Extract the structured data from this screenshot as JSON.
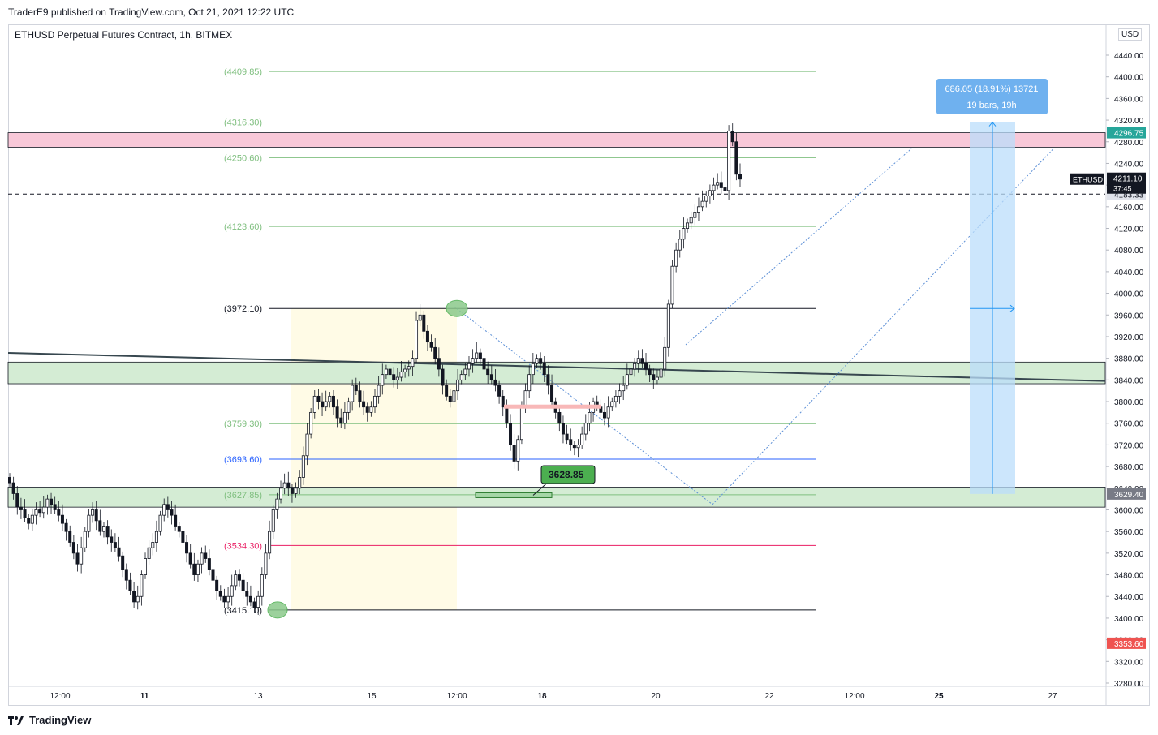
{
  "header": {
    "published_line": "TraderE9 published on TradingView.com, Oct 21, 2021 12:22 UTC",
    "symbol_line": "ETHUSD Perpetual Futures Contract, 1h, BITMEX"
  },
  "footer": {
    "brand": "TradingView"
  },
  "price_axis": {
    "currency": "USD"
  },
  "colors": {
    "fib_green": "#7fbf7f",
    "fib_blue": "#2962ff",
    "fib_red": "#e91e63",
    "pink_zone": "#f8c8d8",
    "green_zone": "#d4ecd4",
    "yellow_zone": "#fffbe6",
    "measure_blue": "#bbdefb",
    "current_price_bg": "#131722",
    "high_label_bg": "#26a69a",
    "low_label_bg": "#ef5350",
    "support_label_bg": "#787b86"
  },
  "chart_data": {
    "type": "candlestick",
    "symbol": "ETHUSD",
    "interval": "1h",
    "exchange": "BITMEX",
    "ylim": [
      3260,
      4480
    ],
    "y_ticks": [
      3280,
      3320,
      3360,
      3400,
      3440,
      3480,
      3520,
      3560,
      3600,
      3640,
      3680,
      3720,
      3760,
      3800,
      3840,
      3880,
      3920,
      3960,
      4000,
      4040,
      4080,
      4120,
      4160,
      4200,
      4240,
      4280,
      4320,
      4360,
      4400,
      4440
    ],
    "y_tick_labels": [
      "3280.00",
      "3320.00",
      "3360.00",
      "3400.00",
      "3440.00",
      "3480.00",
      "3520.00",
      "3560.00",
      "3600.00",
      "3640.00",
      "3680.00",
      "3720.00",
      "3760.00",
      "3800.00",
      "3840.00",
      "3880.00",
      "3920.00",
      "3960.00",
      "4000.00",
      "4040.00",
      "4080.00",
      "4120.00",
      "4160.00",
      "4200.00",
      "4240.00",
      "4280.00",
      "4320.00",
      "4360.00",
      "4400.00",
      "4440.00"
    ],
    "x_tick_labels": [
      "12:00",
      "11",
      "13",
      "15",
      "12:00",
      "18",
      "20",
      "22",
      "12:00",
      "25",
      "27"
    ],
    "x_tick_bold": [
      false,
      true,
      false,
      false,
      false,
      true,
      false,
      false,
      false,
      true,
      false
    ],
    "fib_levels": [
      {
        "label": "(4409.85)",
        "value": 4409.85,
        "color": "green"
      },
      {
        "label": "(4316.30)",
        "value": 4316.3,
        "color": "green"
      },
      {
        "label": "(4250.60)",
        "value": 4250.6,
        "color": "green"
      },
      {
        "label": "(4123.60)",
        "value": 4123.6,
        "color": "green"
      },
      {
        "label": "(3972.10)",
        "value": 3972.1,
        "color": "black"
      },
      {
        "label": "(3759.30)",
        "value": 3759.3,
        "color": "green"
      },
      {
        "label": "(3693.60)",
        "value": 3693.6,
        "color": "blue"
      },
      {
        "label": "(3627.85)",
        "value": 3627.85,
        "color": "green"
      },
      {
        "label": "(3534.30)",
        "value": 3534.3,
        "color": "red"
      },
      {
        "label": "(3415.10)",
        "value": 3415.1,
        "color": "black"
      }
    ],
    "zones": [
      {
        "kind": "pink",
        "top": 4296.75,
        "bottom": 4270
      },
      {
        "kind": "green",
        "top": 3873,
        "bottom": 3833
      },
      {
        "kind": "green",
        "top": 3642,
        "bottom": 3605
      }
    ],
    "price_labels": {
      "high": "4296.75",
      "current_symbol": "ETHUSD",
      "current_price": "4211.10",
      "countdown": "37:45",
      "dashed_level": "4183.33",
      "support": "3629.40",
      "low": "3353.60"
    },
    "annotations": {
      "low_callout": "3628.85",
      "measure_line1": "686.05 (18.91%) 13721",
      "measure_line2": "19 bars, 19h"
    },
    "candles_close": [
      3650,
      3630,
      3605,
      3600,
      3585,
      3575,
      3590,
      3600,
      3595,
      3605,
      3620,
      3610,
      3600,
      3590,
      3575,
      3560,
      3540,
      3520,
      3500,
      3530,
      3560,
      3590,
      3600,
      3580,
      3560,
      3570,
      3550,
      3540,
      3530,
      3515,
      3490,
      3470,
      3450,
      3430,
      3440,
      3480,
      3510,
      3530,
      3540,
      3560,
      3590,
      3610,
      3600,
      3590,
      3570,
      3560,
      3540,
      3520,
      3500,
      3480,
      3500,
      3520,
      3510,
      3490,
      3470,
      3450,
      3440,
      3430,
      3440,
      3460,
      3480,
      3470,
      3450,
      3440,
      3430,
      3420,
      3440,
      3480,
      3520,
      3560,
      3600,
      3620,
      3640,
      3650,
      3640,
      3630,
      3640,
      3660,
      3700,
      3740,
      3780,
      3810,
      3800,
      3790,
      3800,
      3810,
      3790,
      3770,
      3760,
      3780,
      3800,
      3830,
      3820,
      3800,
      3790,
      3780,
      3790,
      3810,
      3830,
      3850,
      3860,
      3850,
      3840,
      3845,
      3855,
      3860,
      3865,
      3880,
      3950,
      3960,
      3930,
      3910,
      3900,
      3880,
      3860,
      3830,
      3810,
      3800,
      3820,
      3840,
      3850,
      3860,
      3870,
      3880,
      3890,
      3880,
      3860,
      3850,
      3840,
      3830,
      3810,
      3790,
      3760,
      3720,
      3690,
      3730,
      3790,
      3820,
      3850,
      3870,
      3880,
      3870,
      3850,
      3830,
      3800,
      3780,
      3760,
      3740,
      3730,
      3720,
      3715,
      3720,
      3740,
      3760,
      3780,
      3800,
      3790,
      3780,
      3770,
      3790,
      3800,
      3810,
      3820,
      3830,
      3850,
      3860,
      3870,
      3880,
      3870,
      3860,
      3850,
      3840,
      3845,
      3860,
      3900,
      3980,
      4050,
      4080,
      4100,
      4120,
      4130,
      4140,
      4150,
      4160,
      4170,
      4180,
      4190,
      4200,
      4205,
      4195,
      4190,
      4300,
      4280,
      4220,
      4211
    ],
    "candles_open": [
      3660,
      3650,
      3630,
      3605,
      3600,
      3585,
      3575,
      3590,
      3600,
      3595,
      3605,
      3620,
      3610,
      3600,
      3590,
      3575,
      3560,
      3540,
      3520,
      3500,
      3530,
      3560,
      3590,
      3600,
      3580,
      3560,
      3570,
      3550,
      3540,
      3530,
      3515,
      3490,
      3470,
      3450,
      3430,
      3440,
      3480,
      3510,
      3530,
      3540,
      3560,
      3590,
      3610,
      3600,
      3590,
      3570,
      3560,
      3540,
      3520,
      3500,
      3480,
      3500,
      3520,
      3510,
      3490,
      3470,
      3450,
      3440,
      3430,
      3440,
      3460,
      3480,
      3470,
      3450,
      3440,
      3430,
      3420,
      3440,
      3480,
      3520,
      3560,
      3600,
      3620,
      3640,
      3650,
      3640,
      3630,
      3640,
      3660,
      3700,
      3740,
      3780,
      3810,
      3800,
      3790,
      3800,
      3810,
      3790,
      3770,
      3760,
      3780,
      3800,
      3830,
      3820,
      3800,
      3790,
      3780,
      3790,
      3810,
      3830,
      3850,
      3860,
      3850,
      3840,
      3845,
      3855,
      3860,
      3865,
      3880,
      3950,
      3960,
      3930,
      3910,
      3900,
      3880,
      3860,
      3830,
      3810,
      3800,
      3820,
      3840,
      3850,
      3860,
      3870,
      3880,
      3890,
      3880,
      3860,
      3850,
      3840,
      3830,
      3810,
      3790,
      3760,
      3720,
      3690,
      3730,
      3790,
      3820,
      3850,
      3870,
      3880,
      3870,
      3850,
      3830,
      3800,
      3780,
      3760,
      3740,
      3730,
      3720,
      3715,
      3720,
      3740,
      3760,
      3780,
      3800,
      3790,
      3780,
      3770,
      3790,
      3800,
      3810,
      3820,
      3830,
      3850,
      3860,
      3870,
      3880,
      3870,
      3860,
      3850,
      3840,
      3845,
      3860,
      3900,
      3980,
      4050,
      4080,
      4100,
      4120,
      4130,
      4140,
      4150,
      4160,
      4170,
      4180,
      4190,
      4200,
      4205,
      4195,
      4190,
      4300,
      4280,
      4220
    ]
  }
}
